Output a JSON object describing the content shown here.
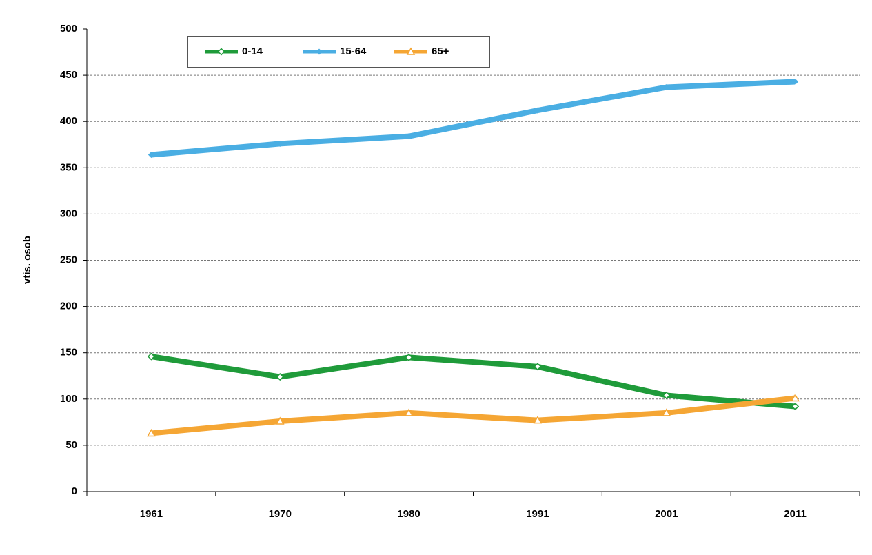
{
  "chart_data": {
    "type": "line",
    "y_label": "vtis. osob",
    "categories": [
      "1961",
      "1970",
      "1980",
      "1991",
      "2001",
      "2011"
    ],
    "series": [
      {
        "name": "0-14",
        "color": "#1f9b3a",
        "marker": "diamond-open",
        "values": [
          146,
          124,
          145,
          135,
          104,
          92
        ]
      },
      {
        "name": "15-64",
        "color": "#4aaee3",
        "marker": "diamond",
        "values": [
          364,
          376,
          384,
          412,
          437,
          443
        ]
      },
      {
        "name": "65+",
        "color": "#f5a634",
        "marker": "triangle-open",
        "values": [
          63,
          76,
          85,
          77,
          85,
          101
        ]
      }
    ],
    "ylim": [
      0,
      500
    ],
    "yticks": [
      0,
      50,
      100,
      150,
      200,
      250,
      300,
      350,
      400,
      450,
      500
    ],
    "grid": true
  }
}
